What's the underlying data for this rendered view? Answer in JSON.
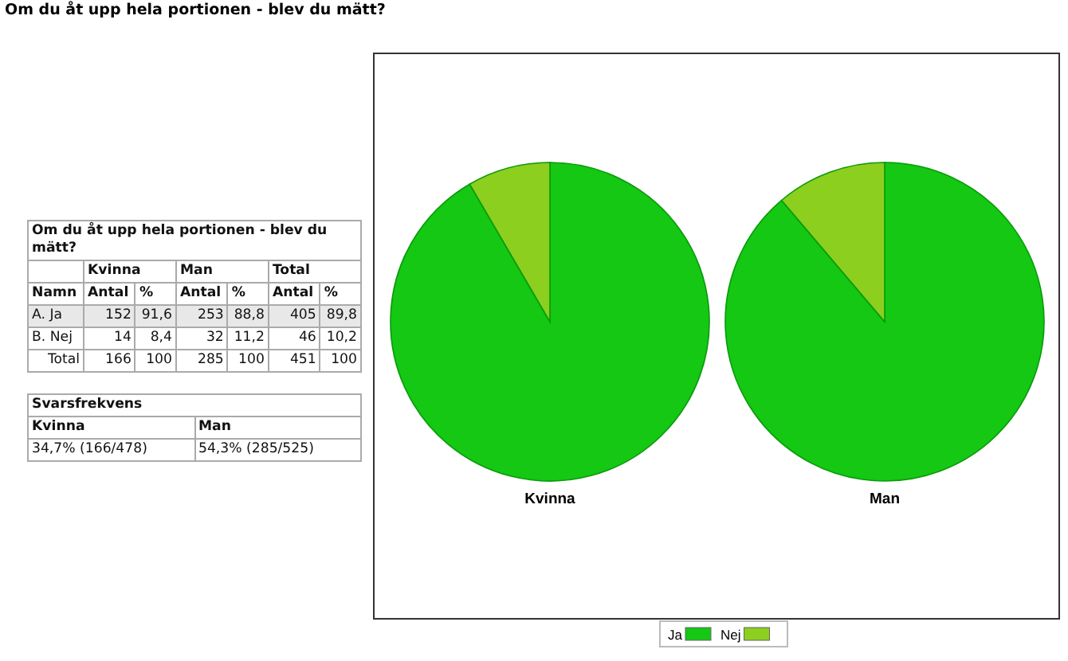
{
  "chart_data": [
    {
      "type": "other",
      "title": "Om du åt upp hela portionen - blev du mätt?",
      "annotations": [
        "Om du åt upp hela portionen - blev du mätt?",
        "Kvinna",
        "Man",
        "Total",
        "Namn",
        "Antal",
        "%",
        "Antal",
        "%",
        "Antal",
        "%",
        "A. Ja",
        "152",
        "91,6",
        "253",
        "88,8",
        "405",
        "89,8",
        "B. Nej",
        "14",
        "8,4",
        "32",
        "11,2",
        "46",
        "10,2",
        "Total",
        "166",
        "100",
        "285",
        "100",
        "451",
        "100",
        "Svarsfrekvens",
        "Kvinna",
        "Man",
        "34,7% (166/478)",
        "54,3% (285/525)"
      ]
    },
    {
      "type": "pie",
      "xlabel": "Kvinna",
      "categories": [
        null,
        null
      ],
      "values": [
        91.6,
        8.4
      ],
      "colors": [
        "#14c814",
        "#8ccf1e"
      ]
    },
    {
      "type": "pie",
      "xlabel": "Man",
      "categories": [
        "Ja",
        "Nej"
      ],
      "values": [
        88.8,
        11.2
      ],
      "colors": [
        "#14c814",
        "#8ccf1e"
      ],
      "legend": "bottom"
    }
  ]
}
